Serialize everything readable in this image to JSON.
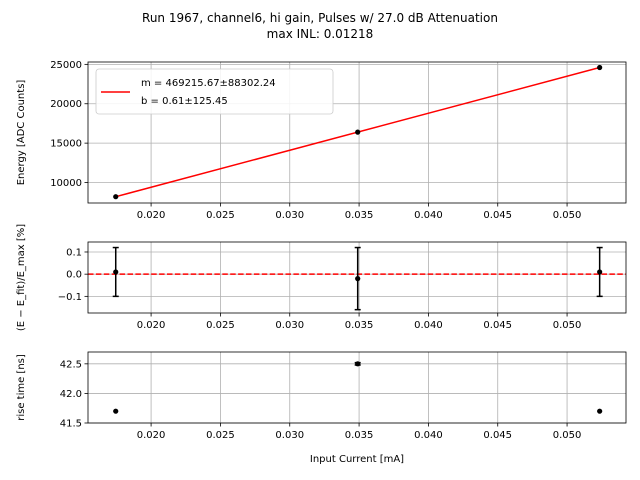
{
  "figure": {
    "title_line1": "Run 1967, channel6, hi gain, Pulses w/ 27.0 dB Attenuation",
    "title_line2": "max INL: 0.01218"
  },
  "chart_data": [
    {
      "type": "line",
      "name": "energy-vs-current",
      "ylabel": "Energy [ADC Counts]",
      "xlabel": "",
      "xlim": [
        0.01545,
        0.05425
      ],
      "ylim": [
        7400,
        25300
      ],
      "xticks": [
        0.02,
        0.025,
        0.03,
        0.035,
        0.04,
        0.045,
        0.05
      ],
      "xtick_labels": [
        "0.020",
        "0.025",
        "0.030",
        "0.035",
        "0.040",
        "0.045",
        "0.050"
      ],
      "yticks": [
        10000,
        15000,
        20000,
        25000
      ],
      "ytick_labels": [
        "10000",
        "15000",
        "20000",
        "25000"
      ],
      "grid": true,
      "legend_position": "top-left",
      "legend_line1": "m = 469215.67±88302.24",
      "legend_line2": "b = 0.61±125.45",
      "points": {
        "x": [
          0.01745,
          0.0349,
          0.05235
        ],
        "y": [
          8200,
          16400,
          24600
        ]
      },
      "fit": {
        "x": [
          0.01745,
          0.05235
        ],
        "y": [
          8200,
          24600
        ],
        "color": "#ff0000"
      }
    },
    {
      "type": "scatter",
      "name": "residuals",
      "ylabel": "(E − E_fit)/E_max [%]",
      "xlabel": "",
      "xlim": [
        0.01545,
        0.05425
      ],
      "ylim": [
        -0.175,
        0.145
      ],
      "xticks": [
        0.02,
        0.025,
        0.03,
        0.035,
        0.04,
        0.045,
        0.05
      ],
      "xtick_labels": [
        "0.020",
        "0.025",
        "0.030",
        "0.035",
        "0.040",
        "0.045",
        "0.050"
      ],
      "yticks": [
        -0.1,
        0.0,
        0.1
      ],
      "ytick_labels": [
        "−0.1",
        "0.0",
        "0.1"
      ],
      "grid": true,
      "points": {
        "x": [
          0.01745,
          0.0349,
          0.05235
        ],
        "y": [
          0.01,
          -0.02,
          0.01
        ],
        "err": [
          0.11,
          0.14,
          0.11
        ]
      },
      "reference_line": {
        "y": 0.0,
        "color": "#ff0000",
        "style": "dashed"
      }
    },
    {
      "type": "scatter",
      "name": "rise-time",
      "ylabel": "rise time [ns]",
      "xlabel": "Input Current [mA]",
      "xlim": [
        0.01545,
        0.05425
      ],
      "ylim": [
        41.5,
        42.7
      ],
      "xticks": [
        0.02,
        0.025,
        0.03,
        0.035,
        0.04,
        0.045,
        0.05
      ],
      "xtick_labels": [
        "0.020",
        "0.025",
        "0.030",
        "0.035",
        "0.040",
        "0.045",
        "0.050"
      ],
      "yticks": [
        41.5,
        42.0,
        42.5
      ],
      "ytick_labels": [
        "41.5",
        "42.0",
        "42.5"
      ],
      "grid": true,
      "points": {
        "x": [
          0.01745,
          0.0349,
          0.05235
        ],
        "y": [
          41.7,
          42.5,
          41.7
        ],
        "err": [
          0.0,
          0.02,
          0.0
        ]
      }
    }
  ]
}
